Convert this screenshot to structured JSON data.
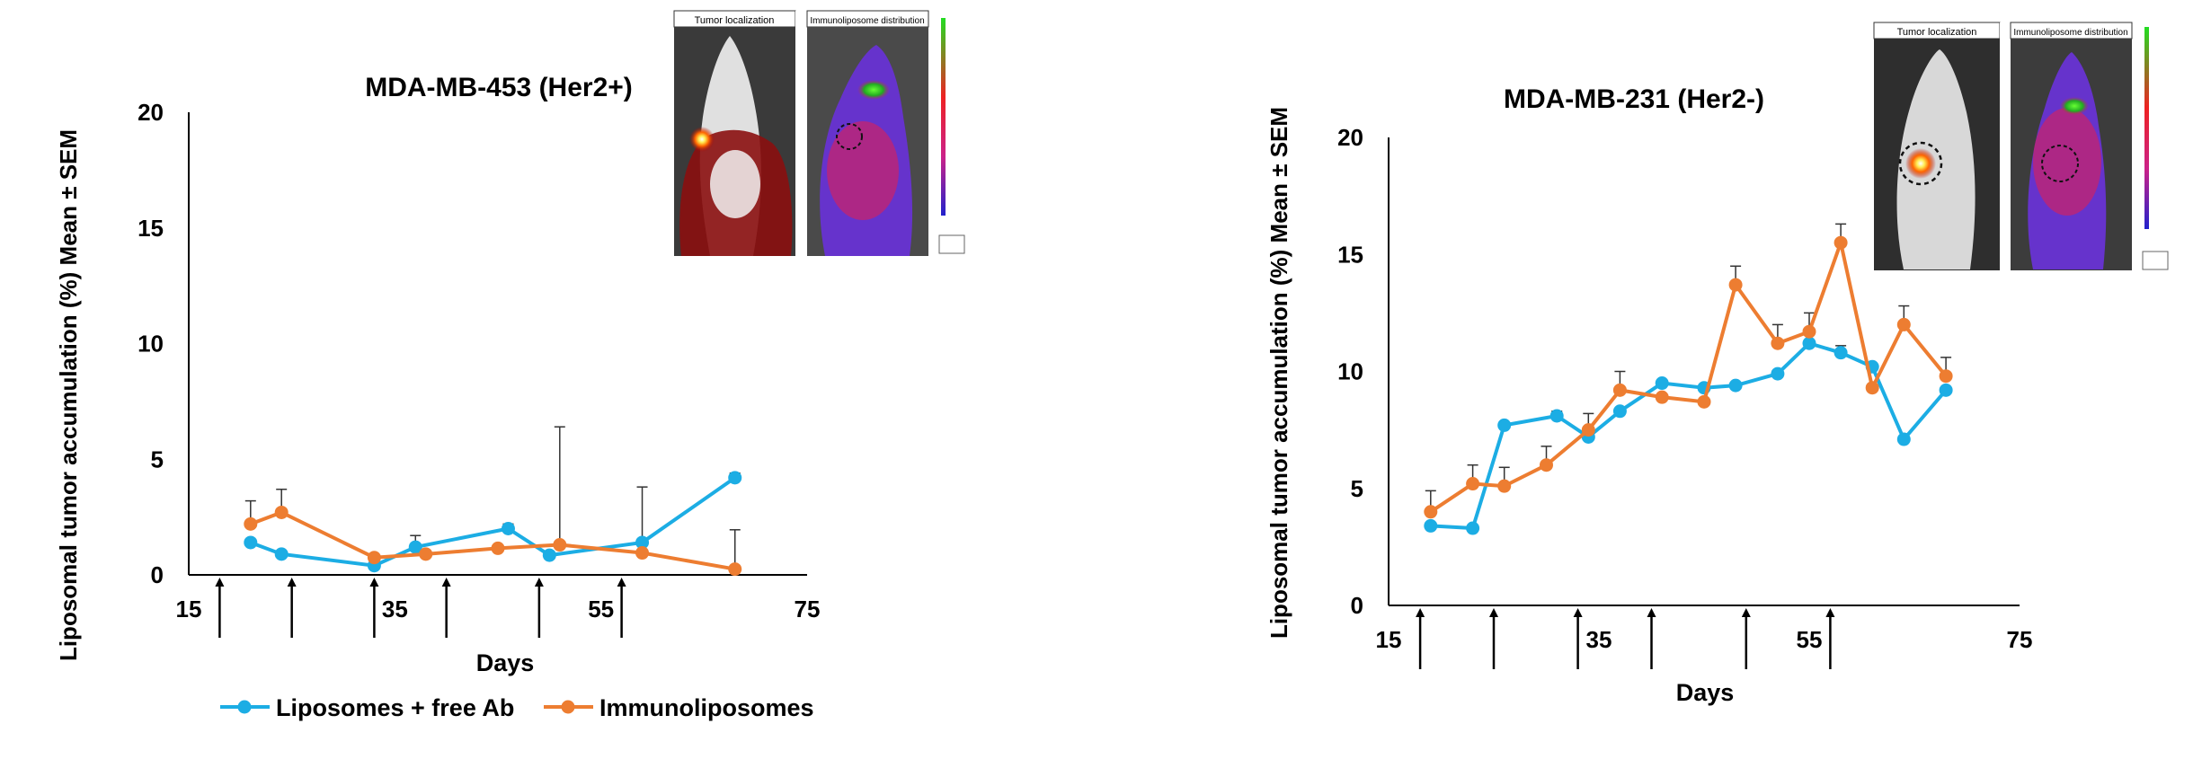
{
  "chart_data": [
    {
      "type": "line",
      "title": "MDA-MB-453 (Her2+)",
      "xlabel": "Days",
      "ylabel": "Liposomal tumor accumulation (%) Mean ± SEM",
      "xlim": [
        15,
        75
      ],
      "ylim": [
        0,
        20
      ],
      "xticks": [
        "15",
        "35",
        "55",
        "75"
      ],
      "yticks": [
        "0",
        "5",
        "10",
        "15",
        "20"
      ],
      "series": [
        {
          "name": "Liposomes + free Ab",
          "color": "#1CADE4",
          "points": [
            [
              21,
              1.4
            ],
            [
              24,
              0.9
            ],
            [
              33,
              0.4
            ],
            [
              37,
              1.2
            ],
            [
              46,
              2.0
            ],
            [
              50,
              0.85
            ],
            [
              59,
              1.4
            ],
            [
              68,
              4.2
            ]
          ],
          "error": [
            0,
            0,
            0,
            0.5,
            0.2,
            0,
            2.4,
            0.2
          ]
        },
        {
          "name": "Immunoliposomes",
          "color": "#ED7D31",
          "points": [
            [
              21,
              2.2
            ],
            [
              24,
              2.7
            ],
            [
              33,
              0.75
            ],
            [
              38,
              0.9
            ],
            [
              45,
              1.15
            ],
            [
              51,
              1.3
            ],
            [
              59,
              0.95
            ],
            [
              68,
              0.25
            ]
          ],
          "error": [
            1.0,
            1.0,
            0,
            0,
            0,
            5.1,
            0,
            1.7
          ]
        }
      ],
      "injection_days": [
        18,
        25,
        33,
        40,
        49,
        57
      ],
      "legend": "bottom"
    },
    {
      "type": "line",
      "title": "MDA-MB-231 (Her2-)",
      "xlabel": "Days",
      "ylabel": "Liposomal tumor accumulation (%) Mean ± SEM",
      "xlim": [
        15,
        75
      ],
      "ylim": [
        0,
        20
      ],
      "xticks": [
        "15",
        "35",
        "55",
        "75"
      ],
      "yticks": [
        "0",
        "5",
        "10",
        "15",
        "20"
      ],
      "series": [
        {
          "name": "Liposomes + free Ab",
          "color": "#1CADE4",
          "points": [
            [
              19,
              3.4
            ],
            [
              23,
              3.3
            ],
            [
              26,
              7.7
            ],
            [
              31,
              8.1
            ],
            [
              34,
              7.2
            ],
            [
              37,
              8.3
            ],
            [
              41,
              9.5
            ],
            [
              45,
              9.3
            ],
            [
              48,
              9.4
            ],
            [
              52,
              9.9
            ],
            [
              55,
              11.2
            ],
            [
              58,
              10.8
            ],
            [
              61,
              10.2
            ],
            [
              64,
              7.1
            ],
            [
              68,
              9.2
            ]
          ],
          "error": [
            0,
            0,
            0,
            0.2,
            0,
            0,
            0,
            0,
            0,
            0,
            0,
            0.3,
            0,
            0,
            0
          ]
        },
        {
          "name": "Immunoliposomes",
          "color": "#ED7D31",
          "points": [
            [
              19,
              4.0
            ],
            [
              23,
              5.2
            ],
            [
              26,
              5.1
            ],
            [
              30,
              6.0
            ],
            [
              34,
              7.5
            ],
            [
              37,
              9.2
            ],
            [
              41,
              8.9
            ],
            [
              45,
              8.7
            ],
            [
              48,
              13.7
            ],
            [
              52,
              11.2
            ],
            [
              55,
              11.7
            ],
            [
              58,
              15.5
            ],
            [
              61,
              9.3
            ],
            [
              64,
              12.0
            ],
            [
              68,
              9.8
            ]
          ],
          "error": [
            0.9,
            0.8,
            0.8,
            0.8,
            0.7,
            0.8,
            0,
            0,
            0.8,
            0.8,
            0.8,
            0.8,
            0,
            0.8,
            0.8
          ]
        }
      ],
      "injection_days": [
        18,
        25,
        33,
        40,
        49,
        57
      ],
      "legend": "none"
    }
  ],
  "insets": [
    {
      "panel_labels": [
        "Tumor localization",
        "Immunoliposome distribution"
      ]
    },
    {
      "panel_labels": [
        "Tumor localization",
        "Immunoliposome distribution"
      ]
    }
  ]
}
